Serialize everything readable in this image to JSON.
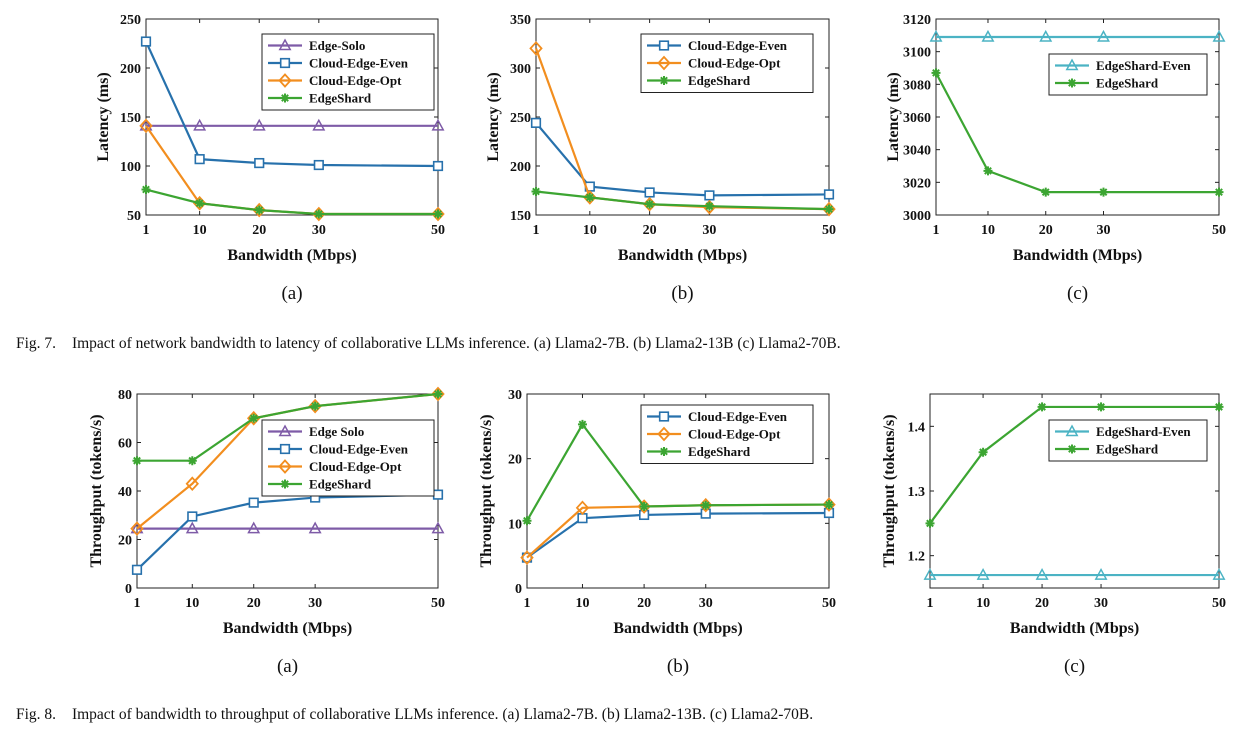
{
  "colors": {
    "edge_solo": "#7E5BA7",
    "cloud_edge_even": "#2771AC",
    "cloud_edge_opt": "#F28E1F",
    "edgeshard": "#3CA532",
    "edgeshard_even": "#4BB3C4"
  },
  "fig7": {
    "caption_label": "Fig. 7.",
    "caption_text": "Impact of network bandwidth to latency of collaborative LLMs inference. (a) Llama2-7B. (b) Llama2-13B (c) Llama2-70B."
  },
  "fig8": {
    "caption_label": "Fig. 8.",
    "caption_text": "Impact of bandwidth to throughput of collaborative LLMs inference. (a) Llama2-7B. (b) Llama2-13B. (c) Llama2-70B."
  },
  "chart_data": [
    {
      "id": "f7a",
      "type": "line",
      "sublabel": "(a)",
      "xlabel": "Bandwidth (Mbps)",
      "ylabel": "Latency (ms)",
      "x": [
        1,
        10,
        20,
        30,
        50
      ],
      "xlim": [
        1,
        50
      ],
      "ylim": [
        50,
        250
      ],
      "yticks": [
        50,
        100,
        150,
        200,
        250
      ],
      "legend_position": "top-right",
      "series": [
        {
          "name": "Edge-Solo",
          "marker": "triangle",
          "color": "#7E5BA7",
          "values": [
            141,
            141,
            141,
            141,
            141
          ]
        },
        {
          "name": "Cloud-Edge-Even",
          "marker": "square",
          "color": "#2771AC",
          "values": [
            227,
            107,
            103,
            101,
            100
          ]
        },
        {
          "name": "Cloud-Edge-Opt",
          "marker": "diamond",
          "color": "#F28E1F",
          "values": [
            141,
            62,
            55,
            51,
            51
          ]
        },
        {
          "name": "EdgeShard",
          "marker": "star",
          "color": "#3CA532",
          "values": [
            76,
            62,
            55,
            51,
            51
          ]
        }
      ]
    },
    {
      "id": "f7b",
      "type": "line",
      "sublabel": "(b)",
      "xlabel": "Bandwidth (Mbps)",
      "ylabel": "Latency (ms)",
      "x": [
        1,
        10,
        20,
        30,
        50
      ],
      "xlim": [
        1,
        50
      ],
      "ylim": [
        150,
        350
      ],
      "yticks": [
        150,
        200,
        250,
        300,
        350
      ],
      "legend_position": "top-right",
      "series": [
        {
          "name": "Cloud-Edge-Even",
          "marker": "square",
          "color": "#2771AC",
          "values": [
            244,
            179,
            173,
            170,
            171
          ]
        },
        {
          "name": "Cloud-Edge-Opt",
          "marker": "diamond",
          "color": "#F28E1F",
          "values": [
            320,
            168,
            161,
            158,
            156
          ]
        },
        {
          "name": "EdgeShard",
          "marker": "star",
          "color": "#3CA532",
          "values": [
            174,
            168,
            161,
            159,
            156
          ]
        }
      ]
    },
    {
      "id": "f7c",
      "type": "line",
      "sublabel": "(c)",
      "xlabel": "Bandwidth (Mbps)",
      "ylabel": "Latency (ms)",
      "x": [
        1,
        10,
        20,
        30,
        50
      ],
      "xlim": [
        1,
        50
      ],
      "ylim": [
        3000,
        3120
      ],
      "yticks": [
        3000,
        3020,
        3040,
        3060,
        3080,
        3100,
        3120
      ],
      "legend_position": "top-right",
      "series": [
        {
          "name": "EdgeShard-Even",
          "marker": "triangle",
          "color": "#4BB3C4",
          "values": [
            3109,
            3109,
            3109,
            3109,
            3109
          ]
        },
        {
          "name": "EdgeShard",
          "marker": "star",
          "color": "#3CA532",
          "values": [
            3087,
            3027,
            3014,
            3014,
            3014
          ]
        }
      ]
    },
    {
      "id": "f8a",
      "type": "line",
      "sublabel": "(a)",
      "xlabel": "Bandwidth (Mbps)",
      "ylabel": "Throughput (tokens/s)",
      "x": [
        1,
        10,
        20,
        30,
        50
      ],
      "xlim": [
        1,
        50
      ],
      "ylim": [
        0,
        80
      ],
      "yticks": [
        0,
        20,
        40,
        60,
        80
      ],
      "legend_position": "bottom-right",
      "series": [
        {
          "name": "Edge Solo",
          "marker": "triangle",
          "color": "#7E5BA7",
          "values": [
            24.5,
            24.5,
            24.5,
            24.5,
            24.5
          ]
        },
        {
          "name": "Cloud-Edge-Even",
          "marker": "square",
          "color": "#2771AC",
          "values": [
            7.5,
            29.5,
            35.2,
            37.3,
            38.5
          ]
        },
        {
          "name": "Cloud-Edge-Opt",
          "marker": "diamond",
          "color": "#F28E1F",
          "values": [
            24.5,
            43,
            70,
            75,
            80
          ]
        },
        {
          "name": "EdgeShard",
          "marker": "star",
          "color": "#3CA532",
          "values": [
            52.5,
            52.5,
            70,
            75,
            80
          ]
        }
      ]
    },
    {
      "id": "f8b",
      "type": "line",
      "sublabel": "(b)",
      "xlabel": "Bandwidth (Mbps)",
      "ylabel": "Throughput (tokens/s)",
      "x": [
        1,
        10,
        20,
        30,
        50
      ],
      "xlim": [
        1,
        50
      ],
      "ylim": [
        0,
        30
      ],
      "yticks": [
        0,
        10,
        20,
        30
      ],
      "legend_position": "top-right",
      "series": [
        {
          "name": "Cloud-Edge-Even",
          "marker": "square",
          "color": "#2771AC",
          "values": [
            4.7,
            10.8,
            11.3,
            11.5,
            11.6
          ]
        },
        {
          "name": "Cloud-Edge-Opt",
          "marker": "diamond",
          "color": "#F28E1F",
          "values": [
            4.7,
            12.4,
            12.6,
            12.8,
            12.9
          ]
        },
        {
          "name": "EdgeShard",
          "marker": "star",
          "color": "#3CA532",
          "values": [
            10.4,
            25.3,
            12.6,
            12.8,
            12.9
          ]
        }
      ]
    },
    {
      "id": "f8c",
      "type": "line",
      "sublabel": "(c)",
      "xlabel": "Bandwidth (Mbps)",
      "ylabel": "Throughput (tokens/s)",
      "x": [
        1,
        10,
        20,
        30,
        50
      ],
      "xlim": [
        1,
        50
      ],
      "ylim": [
        1.15,
        1.45
      ],
      "yticks": [
        1.2,
        1.3,
        1.4
      ],
      "legend_position": "top-right",
      "series": [
        {
          "name": "EdgeShard-Even",
          "marker": "triangle",
          "color": "#4BB3C4",
          "values": [
            1.17,
            1.17,
            1.17,
            1.17,
            1.17
          ]
        },
        {
          "name": "EdgeShard",
          "marker": "star",
          "color": "#3CA532",
          "values": [
            1.25,
            1.36,
            1.43,
            1.43,
            1.43
          ]
        }
      ]
    }
  ]
}
